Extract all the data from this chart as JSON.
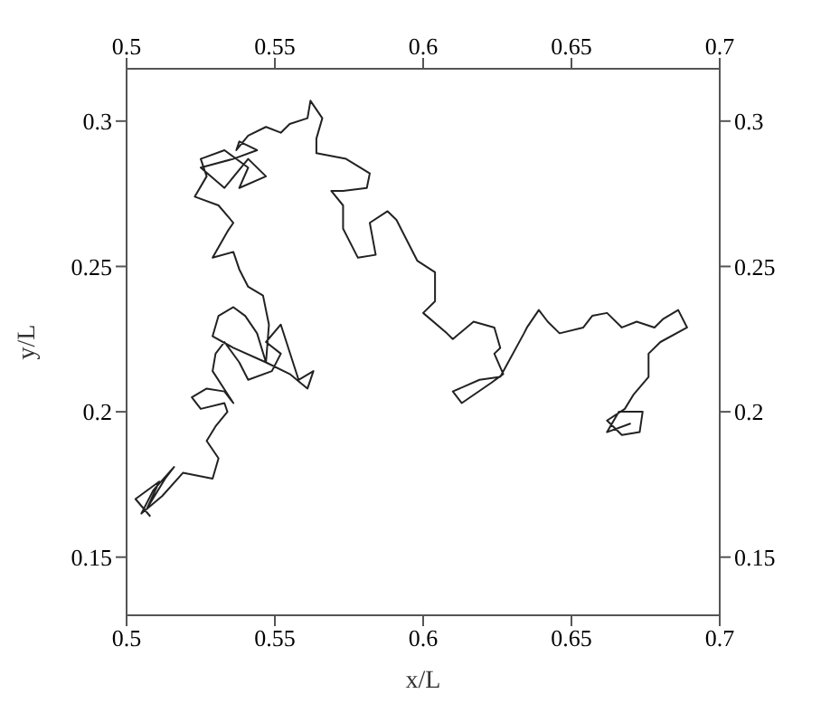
{
  "chart_data": {
    "type": "line",
    "xlabel": "x/L",
    "ylabel": "y/L",
    "marker": "none",
    "line_style": "solid",
    "grid": false,
    "legend": false,
    "xlim": [
      0.5,
      0.7
    ],
    "xticks": [
      0.5,
      0.55,
      0.6,
      0.65,
      0.7
    ],
    "x2lim": [
      0.5,
      0.7
    ],
    "x2ticks": [
      0.5,
      0.55,
      0.6,
      0.65,
      0.7
    ],
    "ylim": [
      0.13,
      0.318
    ],
    "yticks": [
      0.15,
      0.2,
      0.25,
      0.3
    ],
    "y2lim": [
      0.13,
      0.318
    ],
    "y2ticks": [
      0.15,
      0.2,
      0.25,
      0.3
    ],
    "series": [
      {
        "color": "#222222",
        "x": [
          0.508,
          0.503,
          0.511,
          0.507,
          0.513,
          0.516,
          0.509,
          0.505,
          0.512,
          0.519,
          0.529,
          0.531,
          0.527,
          0.53,
          0.534,
          0.533,
          0.525,
          0.522,
          0.527,
          0.533,
          0.536,
          0.529,
          0.53,
          0.533,
          0.538,
          0.541,
          0.549,
          0.552,
          0.547,
          0.552,
          0.558,
          0.563,
          0.561,
          0.555,
          0.547,
          0.544,
          0.54,
          0.536,
          0.531,
          0.529,
          0.536,
          0.547,
          0.548,
          0.546,
          0.541,
          0.538,
          0.536,
          0.529,
          0.534,
          0.536,
          0.531,
          0.523,
          0.527,
          0.525,
          0.533,
          0.541,
          0.538,
          0.547,
          0.541,
          0.533,
          0.525,
          0.536,
          0.544,
          0.538,
          0.537,
          0.541,
          0.547,
          0.552,
          0.555,
          0.561,
          0.562,
          0.566,
          0.564,
          0.564,
          0.574,
          0.582,
          0.581,
          0.573,
          0.569,
          0.573,
          0.573,
          0.578,
          0.584,
          0.582,
          0.588,
          0.591,
          0.595,
          0.598,
          0.604,
          0.604,
          0.6,
          0.608,
          0.61,
          0.617,
          0.624,
          0.626,
          0.624,
          0.627,
          0.623,
          0.613,
          0.61,
          0.619,
          0.626,
          0.634,
          0.635,
          0.639,
          0.642,
          0.646,
          0.654,
          0.657,
          0.662,
          0.667,
          0.672,
          0.678,
          0.681,
          0.686,
          0.689,
          0.68,
          0.676,
          0.676,
          0.671,
          0.668,
          0.662,
          0.667,
          0.673,
          0.674,
          0.666,
          0.662,
          0.67
        ],
        "values": [
          0.164,
          0.17,
          0.176,
          0.167,
          0.177,
          0.181,
          0.173,
          0.165,
          0.171,
          0.179,
          0.177,
          0.184,
          0.19,
          0.195,
          0.2,
          0.203,
          0.201,
          0.205,
          0.208,
          0.207,
          0.203,
          0.214,
          0.22,
          0.224,
          0.217,
          0.211,
          0.214,
          0.22,
          0.224,
          0.23,
          0.211,
          0.214,
          0.208,
          0.213,
          0.217,
          0.227,
          0.233,
          0.236,
          0.233,
          0.226,
          0.222,
          0.217,
          0.23,
          0.24,
          0.243,
          0.249,
          0.255,
          0.253,
          0.262,
          0.265,
          0.271,
          0.274,
          0.281,
          0.287,
          0.29,
          0.284,
          0.277,
          0.281,
          0.287,
          0.277,
          0.284,
          0.287,
          0.29,
          0.293,
          0.29,
          0.295,
          0.298,
          0.296,
          0.299,
          0.301,
          0.307,
          0.301,
          0.294,
          0.289,
          0.287,
          0.282,
          0.277,
          0.276,
          0.276,
          0.271,
          0.263,
          0.253,
          0.254,
          0.265,
          0.269,
          0.266,
          0.258,
          0.252,
          0.248,
          0.238,
          0.234,
          0.227,
          0.225,
          0.231,
          0.229,
          0.222,
          0.22,
          0.213,
          0.21,
          0.203,
          0.207,
          0.211,
          0.212,
          0.227,
          0.229,
          0.235,
          0.231,
          0.227,
          0.229,
          0.233,
          0.234,
          0.229,
          0.231,
          0.229,
          0.232,
          0.235,
          0.229,
          0.224,
          0.22,
          0.212,
          0.206,
          0.201,
          0.197,
          0.192,
          0.193,
          0.2,
          0.2,
          0.193,
          0.196
        ]
      }
    ]
  }
}
